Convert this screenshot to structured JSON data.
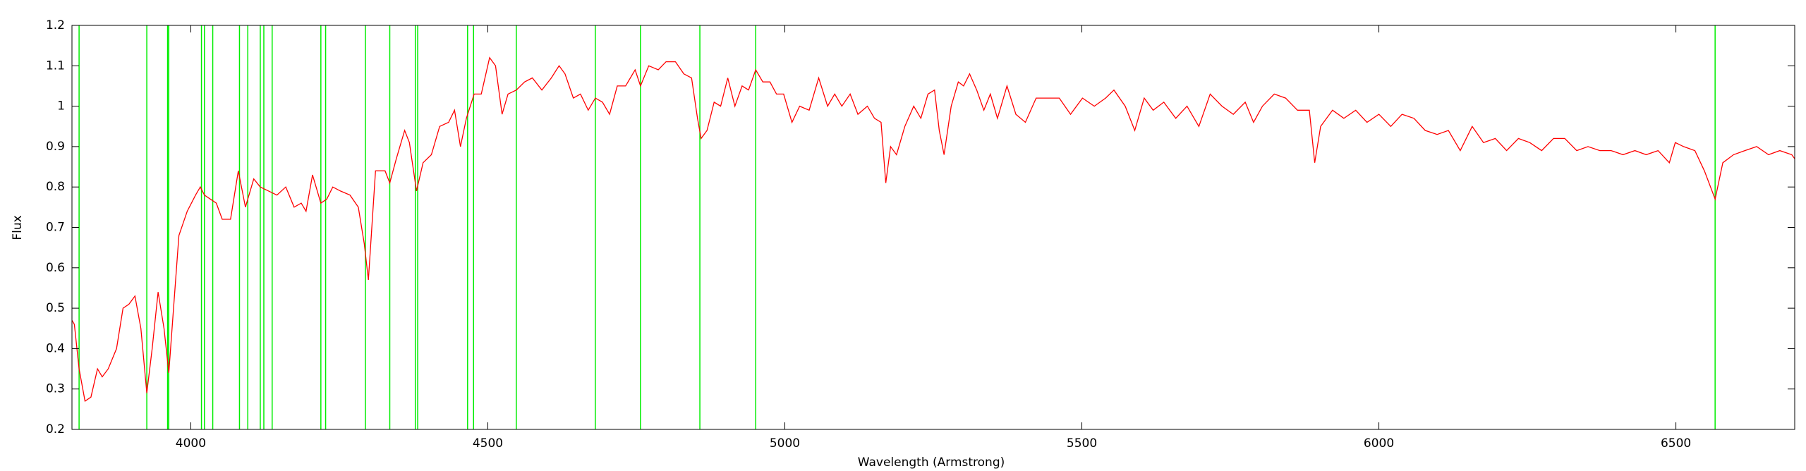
{
  "chart_data": {
    "type": "line",
    "x_label": "Wavelength (Armstrong)",
    "y_label": "Flux",
    "x": [
      3800,
      3804,
      3812,
      3822,
      3832,
      3843,
      3851,
      3861,
      3875,
      3886,
      3896,
      3906,
      3916,
      3926,
      3935,
      3945,
      3955,
      3963,
      3971,
      3980,
      3994,
      4008,
      4016,
      4023,
      4033,
      4043,
      4053,
      4067,
      4080,
      4092,
      4106,
      4117,
      4131,
      4145,
      4160,
      4174,
      4186,
      4194,
      4205,
      4219,
      4229,
      4239,
      4252,
      4268,
      4282,
      4292,
      4299,
      4311,
      4327,
      4335,
      4346,
      4360,
      4368,
      4380,
      4391,
      4405,
      4419,
      4434,
      4444,
      4454,
      4464,
      4477,
      4489,
      4503,
      4513,
      4524,
      4534,
      4548,
      4562,
      4575,
      4591,
      4607,
      4620,
      4630,
      4644,
      4656,
      4669,
      4681,
      4693,
      4705,
      4718,
      4732,
      4748,
      4757,
      4771,
      4787,
      4800,
      4816,
      4830,
      4843,
      4853,
      4859,
      4869,
      4881,
      4892,
      4904,
      4916,
      4928,
      4939,
      4951,
      4963,
      4975,
      4986,
      4998,
      5012,
      5025,
      5041,
      5057,
      5072,
      5084,
      5096,
      5110,
      5123,
      5139,
      5151,
      5162,
      5170,
      5178,
      5188,
      5202,
      5217,
      5229,
      5241,
      5252,
      5260,
      5268,
      5280,
      5292,
      5301,
      5311,
      5323,
      5335,
      5346,
      5358,
      5374,
      5389,
      5405,
      5423,
      5442,
      5462,
      5481,
      5501,
      5521,
      5540,
      5554,
      5573,
      5589,
      5605,
      5620,
      5638,
      5658,
      5677,
      5697,
      5716,
      5736,
      5755,
      5775,
      5789,
      5804,
      5824,
      5843,
      5863,
      5883,
      5892,
      5902,
      5922,
      5941,
      5961,
      5980,
      6000,
      6020,
      6039,
      6059,
      6078,
      6098,
      6117,
      6137,
      6157,
      6176,
      6196,
      6215,
      6235,
      6254,
      6274,
      6294,
      6313,
      6333,
      6352,
      6372,
      6391,
      6411,
      6431,
      6450,
      6470,
      6489,
      6499,
      6513,
      6532,
      6548,
      6566,
      6579,
      6597,
      6616,
      6636,
      6656,
      6675,
      6695,
      6700
    ],
    "series": [
      {
        "color": "#ff0000",
        "values": [
          0.47,
          0.46,
          0.35,
          0.27,
          0.28,
          0.35,
          0.33,
          0.35,
          0.4,
          0.5,
          0.51,
          0.53,
          0.45,
          0.29,
          0.4,
          0.54,
          0.45,
          0.34,
          0.5,
          0.68,
          0.74,
          0.78,
          0.8,
          0.78,
          0.77,
          0.76,
          0.72,
          0.72,
          0.84,
          0.75,
          0.82,
          0.8,
          0.79,
          0.78,
          0.8,
          0.75,
          0.76,
          0.74,
          0.83,
          0.76,
          0.77,
          0.8,
          0.79,
          0.78,
          0.75,
          0.66,
          0.57,
          0.84,
          0.84,
          0.81,
          0.87,
          0.94,
          0.91,
          0.79,
          0.86,
          0.88,
          0.95,
          0.96,
          0.99,
          0.9,
          0.97,
          1.03,
          1.03,
          1.12,
          1.1,
          0.98,
          1.03,
          1.04,
          1.06,
          1.07,
          1.04,
          1.07,
          1.1,
          1.08,
          1.02,
          1.03,
          0.99,
          1.02,
          1.01,
          0.98,
          1.05,
          1.05,
          1.09,
          1.05,
          1.1,
          1.09,
          1.11,
          1.11,
          1.08,
          1.07,
          0.97,
          0.92,
          0.94,
          1.01,
          1.0,
          1.07,
          1.0,
          1.05,
          1.04,
          1.09,
          1.06,
          1.06,
          1.03,
          1.03,
          0.96,
          1.0,
          0.99,
          1.07,
          1.0,
          1.03,
          1.0,
          1.03,
          0.98,
          1.0,
          0.97,
          0.96,
          0.81,
          0.9,
          0.88,
          0.95,
          1.0,
          0.97,
          1.03,
          1.04,
          0.94,
          0.88,
          1.0,
          1.06,
          1.05,
          1.08,
          1.04,
          0.99,
          1.03,
          0.97,
          1.05,
          0.98,
          0.96,
          1.02,
          1.02,
          1.02,
          0.98,
          1.02,
          1.0,
          1.02,
          1.04,
          1.0,
          0.94,
          1.02,
          0.99,
          1.01,
          0.97,
          1.0,
          0.95,
          1.03,
          1.0,
          0.98,
          1.01,
          0.96,
          1.0,
          1.03,
          1.02,
          0.99,
          0.99,
          0.86,
          0.95,
          0.99,
          0.97,
          0.99,
          0.96,
          0.98,
          0.95,
          0.98,
          0.97,
          0.94,
          0.93,
          0.94,
          0.89,
          0.95,
          0.91,
          0.92,
          0.89,
          0.92,
          0.91,
          0.89,
          0.92,
          0.92,
          0.89,
          0.9,
          0.89,
          0.89,
          0.88,
          0.89,
          0.88,
          0.89,
          0.86,
          0.91,
          0.9,
          0.89,
          0.84,
          0.77,
          0.86,
          0.88,
          0.89,
          0.9,
          0.88,
          0.89,
          0.88,
          0.87
        ]
      }
    ],
    "vlines": {
      "color": "#00ee00",
      "values": [
        3812,
        3926,
        3961,
        3963,
        4018,
        4023,
        4037,
        4082,
        4096,
        4117,
        4123,
        4137,
        4219,
        4227,
        4294,
        4335,
        4378,
        4382,
        4466,
        4476,
        4548,
        4681,
        4757,
        4857,
        4951,
        6566
      ]
    },
    "xlim": [
      3800,
      6700
    ],
    "xticks": [
      4000,
      4500,
      5000,
      5500,
      6000,
      6500
    ],
    "ylim": [
      0.2,
      1.2
    ],
    "yticks": [
      0.2,
      0.3,
      0.4,
      0.5,
      0.6,
      0.7,
      0.8,
      0.9,
      1,
      1.1,
      1.2
    ],
    "grid": false
  }
}
